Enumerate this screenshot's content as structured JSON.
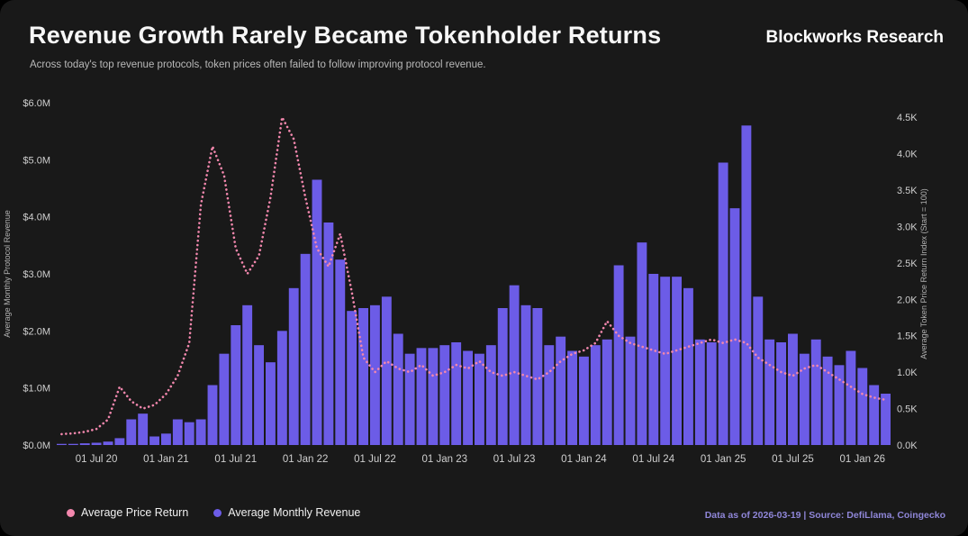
{
  "header": {
    "title": "Revenue Growth Rarely Became Tokenholder Returns",
    "subtitle": "Across today's top revenue protocols, token prices often failed to follow improving protocol revenue.",
    "brand": "Blockworks Research"
  },
  "footer": {
    "note": "Data as of 2026-03-19 | Source: DefiLlama, Coingecko"
  },
  "legend": {
    "items": [
      {
        "label": "Average Price Return",
        "color": "#f287ad",
        "series": "line"
      },
      {
        "label": "Average Monthly Revenue",
        "color": "#6c5ce7",
        "series": "bar"
      }
    ]
  },
  "colors": {
    "background": "#191919",
    "bar": "#6c5ce7",
    "line": "#f287ad",
    "axis_text": "#cfcfcf",
    "axis_title": "#b0b0b0",
    "accent_text": "#8f86d8"
  },
  "chart_data": {
    "type": "combo_bar_line",
    "title": "Revenue Growth Rarely Became Tokenholder Returns",
    "subtitle": "Across today's top revenue protocols, token prices often failed to follow improving protocol revenue.",
    "grid": false,
    "legend_position": "bottom-left",
    "x": [
      "2020-04",
      "2020-05",
      "2020-06",
      "2020-07",
      "2020-08",
      "2020-09",
      "2020-10",
      "2020-11",
      "2020-12",
      "2021-01",
      "2021-02",
      "2021-03",
      "2021-04",
      "2021-05",
      "2021-06",
      "2021-07",
      "2021-08",
      "2021-09",
      "2021-10",
      "2021-11",
      "2021-12",
      "2022-01",
      "2022-02",
      "2022-03",
      "2022-04",
      "2022-05",
      "2022-06",
      "2022-07",
      "2022-08",
      "2022-09",
      "2022-10",
      "2022-11",
      "2022-12",
      "2023-01",
      "2023-02",
      "2023-03",
      "2023-04",
      "2023-05",
      "2023-06",
      "2023-07",
      "2023-08",
      "2023-09",
      "2023-10",
      "2023-11",
      "2023-12",
      "2024-01",
      "2024-02",
      "2024-03",
      "2024-04",
      "2024-05",
      "2024-06",
      "2024-07",
      "2024-08",
      "2024-09",
      "2024-10",
      "2024-11",
      "2024-12",
      "2025-01",
      "2025-02",
      "2025-03",
      "2025-04",
      "2025-05",
      "2025-06",
      "2025-07",
      "2025-08",
      "2025-09",
      "2025-10",
      "2025-11",
      "2025-12",
      "2026-01",
      "2026-02",
      "2026-03"
    ],
    "x_ticks": [
      {
        "index": 3,
        "label": "01 Jul 20"
      },
      {
        "index": 9,
        "label": "01 Jan 21"
      },
      {
        "index": 15,
        "label": "01 Jul 21"
      },
      {
        "index": 21,
        "label": "01 Jan 22"
      },
      {
        "index": 27,
        "label": "01 Jul 22"
      },
      {
        "index": 33,
        "label": "01 Jan 23"
      },
      {
        "index": 39,
        "label": "01 Jul 23"
      },
      {
        "index": 45,
        "label": "01 Jan 24"
      },
      {
        "index": 51,
        "label": "01 Jul 24"
      },
      {
        "index": 57,
        "label": "01 Jan 25"
      },
      {
        "index": 63,
        "label": "01 Jul 25"
      },
      {
        "index": 69,
        "label": "01 Jan 26"
      }
    ],
    "series": [
      {
        "name": "Average Monthly Revenue",
        "type": "bar",
        "axis": "left",
        "unit": "USD millions",
        "values": [
          0.02,
          0.02,
          0.03,
          0.04,
          0.06,
          0.12,
          0.45,
          0.55,
          0.15,
          0.2,
          0.45,
          0.4,
          0.45,
          1.05,
          1.6,
          2.1,
          2.45,
          1.75,
          1.45,
          2.0,
          2.75,
          3.35,
          4.65,
          3.9,
          3.25,
          2.35,
          2.4,
          2.45,
          2.6,
          1.95,
          1.6,
          1.7,
          1.7,
          1.75,
          1.8,
          1.65,
          1.6,
          1.75,
          2.4,
          2.8,
          2.45,
          2.4,
          1.75,
          1.9,
          1.65,
          1.55,
          1.75,
          1.85,
          3.15,
          1.9,
          3.55,
          3.0,
          2.95,
          2.95,
          2.75,
          1.85,
          1.8,
          4.95,
          4.15,
          5.6,
          2.6,
          1.85,
          1.8,
          1.95,
          1.6,
          1.85,
          1.55,
          1.4,
          1.65,
          1.35,
          1.05,
          0.9
        ]
      },
      {
        "name": "Average Price Return",
        "type": "line",
        "axis": "right",
        "unit": "index (start = 100)",
        "values": [
          150,
          160,
          180,
          220,
          350,
          800,
          600,
          500,
          550,
          700,
          950,
          1400,
          3300,
          4100,
          3700,
          2700,
          2350,
          2600,
          3400,
          4500,
          4200,
          3400,
          2700,
          2450,
          2900,
          2100,
          1200,
          1000,
          1150,
          1050,
          1000,
          1100,
          950,
          1000,
          1100,
          1050,
          1150,
          1000,
          950,
          1000,
          950,
          900,
          1000,
          1150,
          1250,
          1300,
          1400,
          1700,
          1500,
          1400,
          1350,
          1300,
          1250,
          1300,
          1350,
          1400,
          1450,
          1400,
          1450,
          1400,
          1200,
          1100,
          1000,
          950,
          1050,
          1100,
          1000,
          900,
          800,
          700,
          650,
          620
        ]
      }
    ],
    "left_axis": {
      "label": "Average Monthly Protocol Revenue",
      "unit": "$M",
      "range": [
        0,
        6
      ],
      "ticks": [
        {
          "value": 0,
          "label": "$0.0M"
        },
        {
          "value": 1,
          "label": "$1.0M"
        },
        {
          "value": 2,
          "label": "$2.0M"
        },
        {
          "value": 3,
          "label": "$3.0M"
        },
        {
          "value": 4,
          "label": "$4.0M"
        },
        {
          "value": 5,
          "label": "$5.0M"
        },
        {
          "value": 6,
          "label": "$6.0M"
        }
      ]
    },
    "right_axis": {
      "label": "Average Token Price Return Index (Start = 100)",
      "unit": "K",
      "range": [
        0,
        4700
      ],
      "ticks": [
        {
          "value": 0,
          "label": "0.0K"
        },
        {
          "value": 500,
          "label": "0.5K"
        },
        {
          "value": 1000,
          "label": "1.0K"
        },
        {
          "value": 1500,
          "label": "1.5K"
        },
        {
          "value": 2000,
          "label": "2.0K"
        },
        {
          "value": 2500,
          "label": "2.5K"
        },
        {
          "value": 3000,
          "label": "3.0K"
        },
        {
          "value": 3500,
          "label": "3.5K"
        },
        {
          "value": 4000,
          "label": "4.0K"
        },
        {
          "value": 4500,
          "label": "4.5K"
        }
      ]
    }
  }
}
